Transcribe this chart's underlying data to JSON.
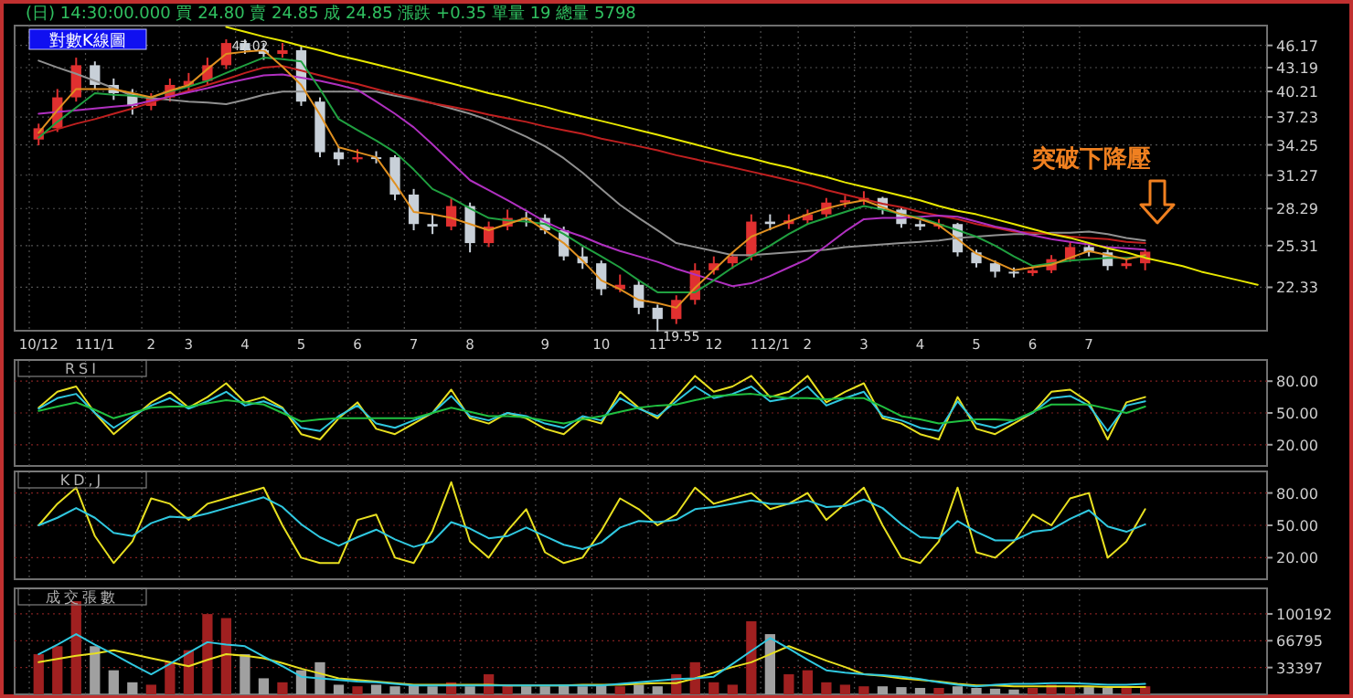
{
  "chart_data": [
    {
      "type": "candlestick",
      "title": "對數K線圖",
      "subtitle": "(日)  14:30:00.000  買 24.80  賣 24.85  成 24.85  漲跌 +0.35  單量 19  總量 5798",
      "log": true,
      "grid": true,
      "categories": [
        "10/12",
        null,
        null,
        "111/1",
        null,
        null,
        "2",
        null,
        "3",
        null,
        null,
        "4",
        null,
        null,
        "5",
        null,
        null,
        "6",
        null,
        null,
        "7",
        null,
        null,
        "8",
        null,
        null,
        null,
        "9",
        null,
        null,
        "10",
        null,
        null,
        "11",
        null,
        null,
        "12",
        null,
        null,
        "112/1",
        null,
        "2",
        null,
        null,
        "3",
        null,
        null,
        "4",
        null,
        null,
        "5",
        null,
        null,
        "6",
        null,
        null,
        "7",
        null,
        null,
        null,
        null,
        null,
        null,
        null,
        null,
        null
      ],
      "ylim": [
        19.6,
        49
      ],
      "yticks": [
        22.33,
        25.31,
        28.29,
        31.27,
        34.25,
        37.23,
        40.21,
        43.19,
        46.17
      ],
      "ohlc": [
        [
          34.8,
          36.5,
          34.2,
          36
        ],
        [
          36,
          40.5,
          35.6,
          39.5
        ],
        [
          39.5,
          44.5,
          39,
          43.5
        ],
        [
          43.5,
          44,
          40.5,
          41
        ],
        [
          41,
          41.8,
          39.2,
          40
        ],
        [
          40,
          40.5,
          37.5,
          38.5
        ],
        [
          38.5,
          40,
          38,
          39.5
        ],
        [
          39.5,
          41.8,
          39,
          41
        ],
        [
          41,
          42.5,
          40.2,
          41.5
        ],
        [
          41.5,
          44.5,
          41,
          43.5
        ],
        [
          43.5,
          47.02,
          43,
          46.5
        ],
        [
          46.5,
          47,
          45,
          45.5
        ],
        [
          45.5,
          46.5,
          44.2,
          45
        ],
        [
          45,
          46.5,
          44.5,
          45.5
        ],
        [
          45.5,
          46,
          38.5,
          39
        ],
        [
          39,
          39.5,
          33,
          33.5
        ],
        [
          33.5,
          34,
          32.2,
          32.8
        ],
        [
          32.8,
          33.8,
          32.5,
          33
        ],
        [
          33,
          33.6,
          32.4,
          33
        ],
        [
          33,
          33.2,
          29,
          29.5
        ],
        [
          29.5,
          30,
          26.5,
          27
        ],
        [
          27,
          27.8,
          26.2,
          26.8
        ],
        [
          26.8,
          29.2,
          26.5,
          28.5
        ],
        [
          28.5,
          28.8,
          24.8,
          25.5
        ],
        [
          25.5,
          27.2,
          25.2,
          26.8
        ],
        [
          26.8,
          28.2,
          26.5,
          27.5
        ],
        [
          27.5,
          28,
          26.8,
          27.5
        ],
        [
          27.5,
          27.8,
          26.2,
          26.5
        ],
        [
          26.5,
          26.8,
          24.2,
          24.5
        ],
        [
          24.5,
          25.2,
          23.6,
          24
        ],
        [
          24,
          24.2,
          21.8,
          22.2
        ],
        [
          22.2,
          23.2,
          22,
          22.5
        ],
        [
          22.5,
          22.8,
          20.6,
          21
        ],
        [
          21,
          21.2,
          19.55,
          20.3
        ],
        [
          20.3,
          21.8,
          20,
          21.5
        ],
        [
          21.5,
          24,
          21.2,
          23.5
        ],
        [
          23.5,
          24.5,
          23.2,
          24
        ],
        [
          24,
          24.8,
          23.6,
          24.5
        ],
        [
          24.5,
          27.8,
          24.2,
          27.2
        ],
        [
          27.2,
          27.8,
          26.5,
          27
        ],
        [
          27,
          27.8,
          26.6,
          27.3
        ],
        [
          27.3,
          28.2,
          27,
          27.8
        ],
        [
          27.8,
          29.2,
          27.5,
          28.8
        ],
        [
          28.8,
          29.4,
          28.4,
          29
        ],
        [
          29,
          29.8,
          28.6,
          29.2
        ],
        [
          29.2,
          29.3,
          27.8,
          28.2
        ],
        [
          28.2,
          28.4,
          26.7,
          27
        ],
        [
          27,
          27.3,
          26.5,
          26.8
        ],
        [
          26.8,
          27.4,
          26.6,
          27
        ],
        [
          27,
          27.1,
          24.5,
          24.8
        ],
        [
          24.8,
          25,
          23.7,
          24
        ],
        [
          24,
          24.2,
          23,
          23.4
        ],
        [
          23.4,
          23.7,
          23,
          23.3
        ],
        [
          23.3,
          23.8,
          23.1,
          23.5
        ],
        [
          23.5,
          24.6,
          23.3,
          24.3
        ],
        [
          24.3,
          25.6,
          24.1,
          25.2
        ],
        [
          25.2,
          25.4,
          24.5,
          24.8
        ],
        [
          24.8,
          25,
          23.5,
          23.8
        ],
        [
          23.8,
          24.3,
          23.6,
          24
        ],
        [
          24,
          25,
          23.5,
          24.85
        ],
        null,
        null,
        null,
        null,
        null,
        null
      ],
      "colors": [
        "#e03030",
        "#e03030",
        "#e03030",
        "#c8d0d8",
        "#c8d0d8",
        "#c8d0d8",
        "#e03030",
        "#e03030",
        "#e03030",
        "#e03030",
        "#e03030",
        "#c8d0d8",
        "#c8d0d8",
        "#e03030",
        "#c8d0d8",
        "#c8d0d8",
        "#c8d0d8",
        "#e03030",
        "#c8d0d8",
        "#c8d0d8",
        "#c8d0d8",
        "#c8d0d8",
        "#e03030",
        "#c8d0d8",
        "#e03030",
        "#e03030",
        "#c8d0d8",
        "#c8d0d8",
        "#c8d0d8",
        "#c8d0d8",
        "#c8d0d8",
        "#e03030",
        "#c8d0d8",
        "#c8d0d8",
        "#e03030",
        "#e03030",
        "#e03030",
        "#e03030",
        "#e03030",
        "#c8d0d8",
        "#e03030",
        "#e03030",
        "#e03030",
        "#e03030",
        "#e03030",
        "#c8d0d8",
        "#c8d0d8",
        "#c8d0d8",
        "#e03030",
        "#c8d0d8",
        "#c8d0d8",
        "#c8d0d8",
        "#c8d0d8",
        "#e03030",
        "#e03030",
        "#e03030",
        "#c8d0d8",
        "#c8d0d8",
        "#e03030",
        "#e03030",
        null,
        null,
        null,
        null,
        null,
        null
      ],
      "series": [
        {
          "type": "line",
          "color": "#909090",
          "values": [
            44.1,
            43.2,
            42.4,
            41.5,
            40.6,
            39.7,
            39.4,
            39.2,
            39.0,
            38.9,
            38.7,
            39.2,
            39.8,
            40.2,
            40.2,
            40.2,
            40.2,
            40.2,
            40.2,
            39.7,
            39.3,
            38.8,
            38.2,
            37.6,
            36.9,
            36.0,
            35.1,
            34.1,
            32.9,
            31.5,
            30.0,
            28.6,
            27.5,
            26.5,
            25.5,
            25.2,
            24.9,
            24.6,
            24.6,
            24.7,
            24.8,
            24.9,
            25.0,
            25.2,
            25.3,
            25.4,
            25.5,
            25.6,
            25.7,
            25.9,
            26.0,
            26.1,
            26.2,
            26.2,
            26.3,
            26.3,
            26.4,
            26.2,
            25.9,
            25.7,
            null,
            null,
            null,
            null,
            null,
            null
          ]
        },
        {
          "type": "line",
          "color": "#c02020",
          "values": [
            35.3,
            35.9,
            36.5,
            37.0,
            37.6,
            38.2,
            38.9,
            39.6,
            40.3,
            41.0,
            41.7,
            42.5,
            43.2,
            43.4,
            42.8,
            42.2,
            41.6,
            41.1,
            40.5,
            39.9,
            39.4,
            38.8,
            38.4,
            38.0,
            37.5,
            37.1,
            36.7,
            36.2,
            35.8,
            35.4,
            34.9,
            34.5,
            34.1,
            33.7,
            33.2,
            32.8,
            32.4,
            32.0,
            31.6,
            31.2,
            30.8,
            30.4,
            29.9,
            29.5,
            29.1,
            28.7,
            28.4,
            28.0,
            27.7,
            27.4,
            27.0,
            26.7,
            26.4,
            26.3,
            26.2,
            26.0,
            25.9,
            25.8,
            25.6,
            25.5,
            null,
            null,
            null,
            null,
            null,
            null
          ]
        },
        {
          "type": "line",
          "color": "#b030c0",
          "values": [
            37.6,
            37.8,
            38.0,
            38.2,
            38.4,
            38.6,
            39.1,
            39.6,
            40.1,
            40.6,
            41.2,
            41.7,
            42.2,
            42.3,
            41.9,
            41.5,
            41.0,
            40.4,
            39.0,
            37.6,
            36.1,
            34.3,
            32.5,
            30.8,
            29.9,
            29.0,
            28.1,
            27.2,
            26.5,
            26.0,
            25.4,
            24.9,
            24.5,
            24.1,
            23.6,
            23.2,
            22.8,
            22.4,
            22.6,
            23.1,
            23.7,
            24.3,
            25.3,
            26.4,
            27.4,
            27.5,
            27.5,
            27.6,
            27.7,
            27.6,
            27.2,
            26.8,
            26.5,
            26.1,
            25.8,
            25.6,
            25.4,
            25.2,
            25.1,
            25.0,
            null,
            null,
            null,
            null,
            null,
            null
          ]
        },
        {
          "type": "line",
          "color": "#20a040",
          "values": [
            35,
            36.7,
            38.3,
            40,
            39.8,
            39.7,
            39.5,
            40.2,
            40.8,
            41.5,
            42.5,
            43.5,
            44.5,
            44.3,
            44,
            40.5,
            37,
            35.8,
            34.7,
            33.5,
            31.8,
            30,
            29.2,
            28.3,
            27.5,
            27.3,
            27.2,
            27,
            26.2,
            25.3,
            24.5,
            23.7,
            22.8,
            22,
            22,
            22,
            22.8,
            23.7,
            24.5,
            25.3,
            26.2,
            27,
            27.5,
            28,
            28.5,
            28.2,
            27.8,
            27.5,
            27,
            26.5,
            26,
            25.3,
            24.5,
            23.8,
            24,
            24.2,
            24.3,
            24.4,
            24.4,
            24.5,
            null,
            null,
            null,
            null,
            null,
            null
          ]
        },
        {
          "type": "line",
          "color": "#e09020",
          "values": [
            35.5,
            38,
            40.5,
            40.5,
            40.5,
            40,
            39.5,
            40.3,
            41,
            43,
            45,
            45.3,
            45.5,
            43.3,
            41,
            37.5,
            34,
            33.5,
            33,
            30.5,
            28,
            27.8,
            27.5,
            27,
            26.5,
            27,
            27.5,
            26.5,
            25.5,
            24.2,
            22.8,
            22.2,
            21.5,
            21.3,
            21,
            22.3,
            23.5,
            24.8,
            26,
            26.6,
            27.2,
            27.8,
            28.3,
            28.7,
            29,
            28.4,
            27.8,
            27.4,
            26.9,
            25.8,
            24.7,
            24.1,
            23.5,
            23.7,
            23.9,
            24.4,
            24.9,
            24.6,
            24.3,
            24.6,
            null,
            null,
            null,
            null,
            null,
            null
          ]
        },
        {
          "type": "line",
          "color": "#e8e800",
          "values": [
            null,
            null,
            null,
            null,
            null,
            null,
            null,
            null,
            null,
            null,
            48.8,
            48.1,
            47.4,
            46.8,
            46.1,
            45.5,
            44.8,
            44.2,
            43.6,
            43.0,
            42.4,
            41.8,
            41.2,
            40.6,
            40.0,
            39.5,
            38.9,
            38.4,
            37.8,
            37.3,
            36.8,
            36.3,
            35.8,
            35.3,
            34.8,
            34.3,
            33.8,
            33.3,
            32.9,
            32.4,
            32.0,
            31.5,
            31.1,
            30.6,
            30.2,
            29.8,
            29.4,
            29.0,
            28.5,
            28.1,
            27.8,
            27.4,
            27.0,
            26.6,
            26.2,
            25.9,
            25.5,
            25.1,
            24.8,
            24.4,
            24.1,
            23.8,
            23.4,
            23.1,
            22.8,
            22.5
          ]
        }
      ],
      "annotations": [
        {
          "text": "47.02",
          "y": 47.02
        },
        {
          "text": "19.55",
          "y": 19.55
        },
        "突破下降壓"
      ]
    },
    {
      "type": "line",
      "title": "RSI",
      "tick_labels": "y",
      "grid": true,
      "categories": [
        null,
        null,
        null,
        null,
        null,
        null,
        null,
        null,
        null,
        null,
        null,
        null,
        null,
        null,
        null,
        null,
        null,
        null,
        null,
        null,
        null,
        null,
        null,
        null,
        null,
        null,
        null,
        null,
        null,
        null,
        null,
        null,
        null,
        null,
        null,
        null,
        null,
        null,
        null,
        null,
        null,
        null,
        null,
        null,
        null,
        null,
        null,
        null,
        null,
        null,
        null,
        null,
        null,
        null,
        null,
        null,
        null,
        null,
        null,
        null,
        null,
        null,
        null,
        null,
        null,
        null
      ],
      "ylim": [
        0,
        100
      ],
      "yticks": [
        {
          "value": 20,
          "label": "20.00"
        },
        {
          "value": 50,
          "label": "50.00"
        },
        {
          "value": 80,
          "label": "80.00"
        }
      ],
      "series": [
        {
          "color": "#e8e020",
          "values": [
            55,
            70,
            75,
            50,
            30,
            45,
            60,
            70,
            55,
            65,
            78,
            60,
            65,
            55,
            30,
            25,
            45,
            60,
            35,
            30,
            40,
            50,
            72,
            45,
            40,
            50,
            45,
            35,
            30,
            45,
            40,
            70,
            55,
            45,
            65,
            85,
            70,
            75,
            85,
            65,
            70,
            85,
            60,
            70,
            78,
            45,
            40,
            30,
            25,
            65,
            35,
            30,
            40,
            50,
            70,
            72,
            60,
            25,
            60,
            65,
            null,
            null,
            null,
            null,
            null,
            null
          ]
        },
        {
          "color": "#30c8e0",
          "values": [
            54,
            64,
            68,
            50,
            36,
            47,
            57,
            64,
            54,
            61,
            70,
            57,
            61,
            54,
            36,
            33,
            47,
            57,
            40,
            36,
            43,
            50,
            66,
            47,
            43,
            50,
            47,
            40,
            36,
            47,
            43,
            64,
            54,
            47,
            61,
            75,
            64,
            68,
            75,
            61,
            64,
            75,
            57,
            64,
            70,
            47,
            43,
            36,
            33,
            61,
            40,
            36,
            43,
            50,
            64,
            66,
            57,
            33,
            57,
            61,
            null,
            null,
            null,
            null,
            null,
            null
          ]
        },
        {
          "color": "#20c040",
          "values": [
            52,
            56,
            60,
            53,
            45,
            50,
            55,
            56,
            56,
            59,
            62,
            60,
            58,
            50,
            42,
            44,
            45,
            45,
            45,
            45,
            45,
            50,
            55,
            51,
            47,
            47,
            46,
            43,
            40,
            44,
            47,
            51,
            55,
            57,
            58,
            62,
            66,
            67,
            68,
            66,
            64,
            64,
            63,
            64,
            64,
            56,
            47,
            44,
            40,
            42,
            44,
            44,
            43,
            51,
            58,
            58,
            58,
            54,
            50,
            56,
            null,
            null,
            null,
            null,
            null,
            null
          ]
        }
      ]
    },
    {
      "type": "line",
      "title": "KD,J",
      "tick_labels": "y",
      "grid": true,
      "categories": [
        null,
        null,
        null,
        null,
        null,
        null,
        null,
        null,
        null,
        null,
        null,
        null,
        null,
        null,
        null,
        null,
        null,
        null,
        null,
        null,
        null,
        null,
        null,
        null,
        null,
        null,
        null,
        null,
        null,
        null,
        null,
        null,
        null,
        null,
        null,
        null,
        null,
        null,
        null,
        null,
        null,
        null,
        null,
        null,
        null,
        null,
        null,
        null,
        null,
        null,
        null,
        null,
        null,
        null,
        null,
        null,
        null,
        null,
        null,
        null,
        null,
        null,
        null,
        null,
        null,
        null
      ],
      "ylim": [
        0,
        100
      ],
      "yticks": [
        {
          "value": 20,
          "label": "20.00"
        },
        {
          "value": 50,
          "label": "50.00"
        },
        {
          "value": 80,
          "label": "80.00"
        }
      ],
      "series": [
        {
          "color": "#e8e020",
          "values": [
            50,
            70,
            85,
            40,
            15,
            35,
            75,
            70,
            55,
            70,
            75,
            80,
            85,
            50,
            20,
            15,
            15,
            55,
            60,
            20,
            15,
            45,
            90,
            35,
            20,
            45,
            65,
            25,
            15,
            20,
            45,
            75,
            65,
            50,
            60,
            85,
            70,
            75,
            80,
            65,
            70,
            80,
            55,
            70,
            85,
            50,
            20,
            15,
            35,
            85,
            25,
            20,
            35,
            60,
            50,
            75,
            80,
            20,
            35,
            65,
            null,
            null,
            null,
            null,
            null,
            null
          ]
        },
        {
          "color": "#30c8e0",
          "values": [
            50,
            57,
            66,
            57,
            43,
            40,
            52,
            58,
            57,
            61,
            66,
            71,
            76,
            67,
            51,
            39,
            31,
            39,
            46,
            37,
            30,
            35,
            53,
            47,
            38,
            40,
            48,
            40,
            32,
            28,
            34,
            48,
            54,
            53,
            55,
            65,
            67,
            70,
            73,
            70,
            70,
            73,
            67,
            68,
            74,
            66,
            51,
            39,
            38,
            54,
            44,
            36,
            36,
            44,
            46,
            56,
            64,
            49,
            44,
            51,
            null,
            null,
            null,
            null,
            null,
            null
          ]
        }
      ]
    },
    {
      "type": "bar",
      "title": "成交張數",
      "tick_labels": "y",
      "grid": true,
      "categories": [
        null,
        null,
        null,
        null,
        null,
        null,
        null,
        null,
        null,
        null,
        null,
        null,
        null,
        null,
        null,
        null,
        null,
        null,
        null,
        null,
        null,
        null,
        null,
        null,
        null,
        null,
        null,
        null,
        null,
        null,
        null,
        null,
        null,
        null,
        null,
        null,
        null,
        null,
        null,
        null,
        null,
        null,
        null,
        null,
        null,
        null,
        null,
        null,
        null,
        null,
        null,
        null,
        null,
        null,
        null,
        null,
        null,
        null,
        null,
        null,
        null,
        null,
        null,
        null,
        null,
        null
      ],
      "ylim": [
        0,
        132000
      ],
      "yticks": [
        33397,
        66795,
        100192
      ],
      "series": [
        {
          "type": "bar",
          "colors": [
            "#a02020",
            "#a02020",
            "#a02020",
            "#a0a0a0",
            "#a0a0a0",
            "#a0a0a0",
            "#a02020",
            "#a02020",
            "#a02020",
            "#a02020",
            "#a02020",
            "#a0a0a0",
            "#a0a0a0",
            "#a02020",
            "#a0a0a0",
            "#a0a0a0",
            "#a0a0a0",
            "#a02020",
            "#a0a0a0",
            "#a0a0a0",
            "#a0a0a0",
            "#a0a0a0",
            "#a02020",
            "#a0a0a0",
            "#a02020",
            "#a02020",
            "#a0a0a0",
            "#a0a0a0",
            "#a0a0a0",
            "#a0a0a0",
            "#a0a0a0",
            "#a02020",
            "#a0a0a0",
            "#a0a0a0",
            "#a02020",
            "#a02020",
            "#a02020",
            "#a02020",
            "#a02020",
            "#a0a0a0",
            "#a02020",
            "#a02020",
            "#a02020",
            "#a02020",
            "#a02020",
            "#a0a0a0",
            "#a0a0a0",
            "#a0a0a0",
            "#a02020",
            "#a0a0a0",
            "#a0a0a0",
            "#a0a0a0",
            "#a0a0a0",
            "#a02020",
            "#a02020",
            "#a02020",
            "#a0a0a0",
            "#a0a0a0",
            "#a02020",
            "#a02020",
            null,
            null,
            null,
            null,
            null,
            null
          ],
          "values": [
            50000,
            60000,
            116000,
            60000,
            30000,
            15000,
            12000,
            40000,
            55000,
            100000,
            95000,
            50000,
            20000,
            15000,
            30000,
            40000,
            12000,
            10000,
            12000,
            10000,
            12000,
            10000,
            15000,
            10000,
            25000,
            12000,
            10000,
            10000,
            12000,
            10000,
            12000,
            10000,
            12000,
            10000,
            25000,
            40000,
            15000,
            12000,
            91000,
            75000,
            25000,
            30000,
            15000,
            12000,
            10000,
            10000,
            9000,
            8000,
            8000,
            10000,
            8000,
            7000,
            6000,
            8000,
            12000,
            10000,
            9000,
            8000,
            8000,
            10000,
            null,
            null,
            null,
            null,
            null,
            null
          ]
        },
        {
          "type": "line",
          "color": "#e8e020",
          "values": [
            40000,
            44000,
            48000,
            51000,
            55000,
            50000,
            45000,
            40000,
            35000,
            43000,
            50000,
            48000,
            45000,
            39000,
            32000,
            26000,
            20000,
            18000,
            16000,
            14000,
            12000,
            12000,
            12000,
            12000,
            12000,
            11000,
            11000,
            11000,
            11000,
            12000,
            12000,
            12000,
            13000,
            14000,
            14000,
            20000,
            27000,
            34000,
            40000,
            50000,
            60000,
            51000,
            42000,
            34000,
            25000,
            23000,
            20000,
            18000,
            16000,
            13000,
            11000,
            11000,
            10000,
            10000,
            10000,
            10000,
            10000,
            9000,
            9000,
            9000,
            null,
            null,
            null,
            null,
            null,
            null
          ]
        },
        {
          "type": "line",
          "color": "#30c8e0",
          "values": [
            50000,
            62000,
            75000,
            62000,
            50000,
            37000,
            25000,
            38000,
            52000,
            65000,
            62000,
            60000,
            47000,
            35000,
            22000,
            20000,
            18000,
            16000,
            15000,
            13000,
            11000,
            11000,
            11000,
            11000,
            11000,
            11000,
            11000,
            11000,
            11000,
            11000,
            11000,
            13000,
            15000,
            17000,
            19000,
            20000,
            22000,
            38000,
            54000,
            70000,
            57000,
            43000,
            30000,
            27000,
            25000,
            24000,
            22000,
            19000,
            15000,
            12000,
            10000,
            12000,
            13000,
            13000,
            14000,
            14000,
            13000,
            12000,
            12000,
            13000,
            null,
            null,
            null,
            null,
            null,
            null
          ]
        }
      ]
    }
  ]
}
